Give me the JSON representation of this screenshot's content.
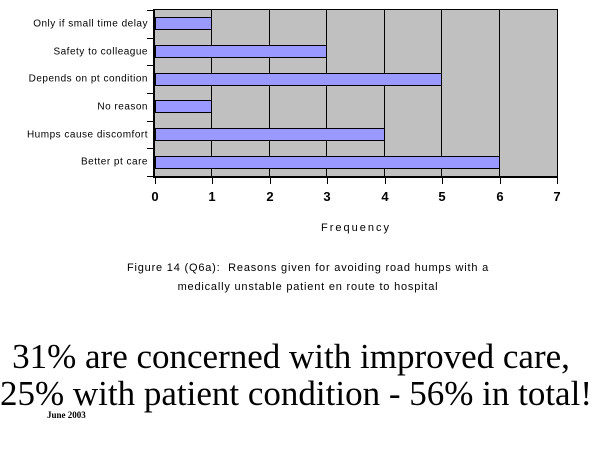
{
  "chart_data": {
    "type": "bar",
    "orientation": "horizontal",
    "categories": [
      "Only if small time delay",
      "Safety to colleague",
      "Depends on pt condition",
      "No reason",
      "Humps cause discomfort",
      "Better pt care"
    ],
    "values": [
      1,
      3,
      5,
      1,
      4,
      6
    ],
    "title": "",
    "xlabel": "Frequency",
    "ylabel": "",
    "xlim": [
      0,
      7
    ],
    "x_ticks": [
      0,
      1,
      2,
      3,
      4,
      5,
      6,
      7
    ],
    "grid": true,
    "legend": "none",
    "plot_bg_color": "#c0c0c0",
    "bar_fill_color": "#9999ff",
    "bar_border_color": "#000000"
  },
  "caption": {
    "line1": "Figure 14 (Q6a):  Reasons given for avoiding road humps with a",
    "line2": "medically unstable patient en route to hospital"
  },
  "summary": {
    "line1": "31% are concerned with improved care,",
    "line2": "25% with patient condition - 56% in total!"
  },
  "footer": {
    "date": "June 2003"
  }
}
